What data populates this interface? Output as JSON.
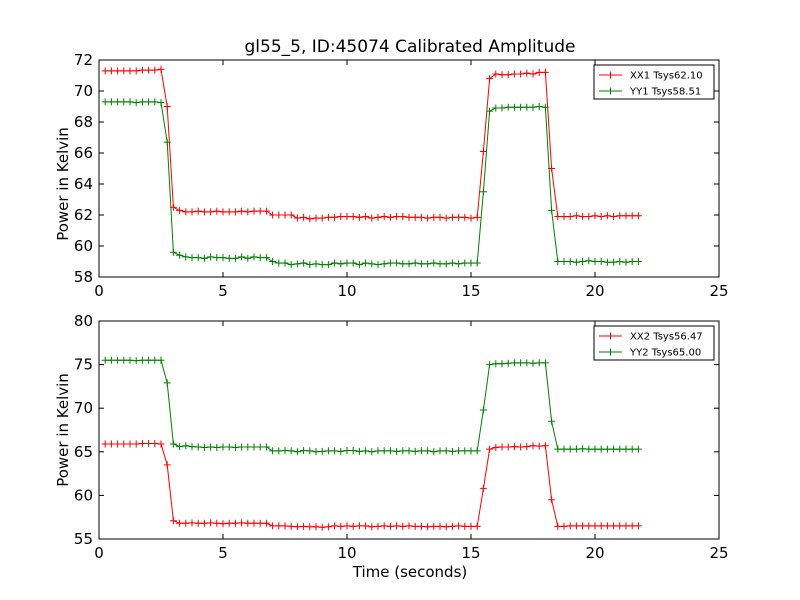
{
  "chart_data": [
    {
      "type": "line",
      "title": "gl55_5, ID:45074 Calibrated Amplitude",
      "xlabel": "",
      "ylabel": "Power in Kelvin",
      "xlim": [
        0,
        25
      ],
      "ylim": [
        58,
        72
      ],
      "xticks": [
        0,
        5,
        10,
        15,
        20,
        25
      ],
      "yticks": [
        58,
        60,
        62,
        64,
        66,
        68,
        70,
        72
      ],
      "grid": false,
      "legend_position": "top-right",
      "series": [
        {
          "name": "XX1 Tsys62.10",
          "color": "#ff0000",
          "x": [
            0.25,
            0.5,
            0.75,
            1.0,
            1.25,
            1.5,
            1.75,
            2.0,
            2.25,
            2.5,
            2.75,
            3.0,
            3.25,
            3.5,
            3.75,
            4.0,
            4.25,
            4.5,
            4.75,
            5.0,
            5.25,
            5.5,
            5.75,
            6.0,
            6.25,
            6.5,
            6.75,
            7.0,
            7.25,
            7.5,
            7.75,
            8.0,
            8.25,
            8.5,
            8.75,
            9.0,
            9.25,
            9.5,
            9.75,
            10.0,
            10.25,
            10.5,
            10.75,
            11.0,
            11.25,
            11.5,
            11.75,
            12.0,
            12.25,
            12.5,
            12.75,
            13.0,
            13.25,
            13.5,
            13.75,
            14.0,
            14.25,
            14.5,
            14.75,
            15.0,
            15.25,
            15.5,
            15.75,
            16.0,
            16.25,
            16.5,
            16.75,
            17.0,
            17.25,
            17.5,
            17.75,
            18.0,
            18.25,
            18.5,
            18.75,
            19.0,
            19.25,
            19.5,
            19.75,
            20.0,
            20.25,
            20.5,
            20.75,
            21.0,
            21.25,
            21.5,
            21.75
          ],
          "y": [
            71.3,
            71.3,
            71.3,
            71.3,
            71.3,
            71.3,
            71.35,
            71.35,
            71.35,
            71.4,
            69.0,
            62.5,
            62.3,
            62.2,
            62.2,
            62.25,
            62.2,
            62.2,
            62.25,
            62.2,
            62.2,
            62.2,
            62.25,
            62.2,
            62.25,
            62.25,
            62.25,
            62.0,
            62.0,
            62.0,
            62.0,
            61.8,
            61.85,
            61.75,
            61.8,
            61.8,
            61.85,
            61.85,
            61.9,
            61.9,
            61.9,
            61.85,
            61.9,
            61.8,
            61.85,
            61.9,
            61.85,
            61.9,
            61.9,
            61.85,
            61.85,
            61.85,
            61.8,
            61.85,
            61.85,
            61.8,
            61.85,
            61.85,
            61.85,
            61.8,
            61.85,
            66.1,
            70.8,
            71.1,
            71.05,
            71.05,
            71.1,
            71.1,
            71.15,
            71.1,
            71.2,
            71.2,
            65.0,
            61.9,
            61.9,
            61.9,
            61.95,
            61.9,
            61.9,
            61.95,
            61.9,
            61.95,
            61.9,
            61.95,
            61.95,
            61.95,
            61.95
          ]
        },
        {
          "name": "YY1 Tsys58.51",
          "color": "#008000",
          "x": [
            0.25,
            0.5,
            0.75,
            1.0,
            1.25,
            1.5,
            1.75,
            2.0,
            2.25,
            2.5,
            2.75,
            3.0,
            3.25,
            3.5,
            3.75,
            4.0,
            4.25,
            4.5,
            4.75,
            5.0,
            5.25,
            5.5,
            5.75,
            6.0,
            6.25,
            6.5,
            6.75,
            7.0,
            7.25,
            7.5,
            7.75,
            8.0,
            8.25,
            8.5,
            8.75,
            9.0,
            9.25,
            9.5,
            9.75,
            10.0,
            10.25,
            10.5,
            10.75,
            11.0,
            11.25,
            11.5,
            11.75,
            12.0,
            12.25,
            12.5,
            12.75,
            13.0,
            13.25,
            13.5,
            13.75,
            14.0,
            14.25,
            14.5,
            14.75,
            15.0,
            15.25,
            15.5,
            15.75,
            16.0,
            16.25,
            16.5,
            16.75,
            17.0,
            17.25,
            17.5,
            17.75,
            18.0,
            18.25,
            18.5,
            18.75,
            19.0,
            19.25,
            19.5,
            19.75,
            20.0,
            20.25,
            20.5,
            20.75,
            21.0,
            21.25,
            21.5,
            21.75
          ],
          "y": [
            69.3,
            69.3,
            69.3,
            69.3,
            69.3,
            69.25,
            69.3,
            69.3,
            69.3,
            69.25,
            66.7,
            59.6,
            59.4,
            59.3,
            59.25,
            59.25,
            59.2,
            59.3,
            59.25,
            59.25,
            59.2,
            59.2,
            59.3,
            59.2,
            59.3,
            59.25,
            59.25,
            59.0,
            58.9,
            58.9,
            58.8,
            58.85,
            58.9,
            58.8,
            58.85,
            58.8,
            58.8,
            58.9,
            58.85,
            58.9,
            58.9,
            58.8,
            58.9,
            58.85,
            58.8,
            58.85,
            58.9,
            58.9,
            58.85,
            58.85,
            58.9,
            58.85,
            58.85,
            58.9,
            58.85,
            58.85,
            58.9,
            58.85,
            58.9,
            58.9,
            58.9,
            63.5,
            68.7,
            68.9,
            68.9,
            68.95,
            68.95,
            68.95,
            68.95,
            68.95,
            69.0,
            68.95,
            62.3,
            59.0,
            59.0,
            59.0,
            58.95,
            59.0,
            59.05,
            59.0,
            59.0,
            58.95,
            58.95,
            59.0,
            58.95,
            59.0,
            59.0
          ]
        }
      ]
    },
    {
      "type": "line",
      "title": "",
      "xlabel": "Time (seconds)",
      "ylabel": "Power in Kelvin",
      "xlim": [
        0,
        25
      ],
      "ylim": [
        55,
        80
      ],
      "xticks": [
        0,
        5,
        10,
        15,
        20,
        25
      ],
      "yticks": [
        55,
        60,
        65,
        70,
        75,
        80
      ],
      "grid": false,
      "legend_position": "top-right",
      "series": [
        {
          "name": "XX2 Tsys56.47",
          "color": "#ff0000",
          "x": [
            0.25,
            0.5,
            0.75,
            1.0,
            1.25,
            1.5,
            1.75,
            2.0,
            2.25,
            2.5,
            2.75,
            3.0,
            3.25,
            3.5,
            3.75,
            4.0,
            4.25,
            4.5,
            4.75,
            5.0,
            5.25,
            5.5,
            5.75,
            6.0,
            6.25,
            6.5,
            6.75,
            7.0,
            7.25,
            7.5,
            7.75,
            8.0,
            8.25,
            8.5,
            8.75,
            9.0,
            9.25,
            9.5,
            9.75,
            10.0,
            10.25,
            10.5,
            10.75,
            11.0,
            11.25,
            11.5,
            11.75,
            12.0,
            12.25,
            12.5,
            12.75,
            13.0,
            13.25,
            13.5,
            13.75,
            14.0,
            14.25,
            14.5,
            14.75,
            15.0,
            15.25,
            15.5,
            15.75,
            16.0,
            16.25,
            16.5,
            16.75,
            17.0,
            17.25,
            17.5,
            17.75,
            18.0,
            18.25,
            18.5,
            18.75,
            19.0,
            19.25,
            19.5,
            19.75,
            20.0,
            20.25,
            20.5,
            20.75,
            21.0,
            21.25,
            21.5,
            21.75
          ],
          "y": [
            65.9,
            65.9,
            65.9,
            65.9,
            65.9,
            65.9,
            65.95,
            65.95,
            65.95,
            65.9,
            63.5,
            57.1,
            56.8,
            56.8,
            56.85,
            56.8,
            56.8,
            56.85,
            56.8,
            56.75,
            56.8,
            56.8,
            56.85,
            56.8,
            56.8,
            56.8,
            56.8,
            56.5,
            56.5,
            56.5,
            56.45,
            56.4,
            56.45,
            56.4,
            56.4,
            56.35,
            56.4,
            56.5,
            56.45,
            56.5,
            56.45,
            56.5,
            56.5,
            56.4,
            56.45,
            56.5,
            56.45,
            56.5,
            56.45,
            56.5,
            56.45,
            56.45,
            56.4,
            56.45,
            56.45,
            56.4,
            56.45,
            56.5,
            56.45,
            56.45,
            56.45,
            60.8,
            65.3,
            65.5,
            65.55,
            65.55,
            65.6,
            65.55,
            65.6,
            65.7,
            65.65,
            65.7,
            59.5,
            56.45,
            56.45,
            56.5,
            56.5,
            56.5,
            56.5,
            56.5,
            56.5,
            56.5,
            56.5,
            56.5,
            56.5,
            56.5,
            56.5
          ]
        },
        {
          "name": "YY2 Tsys65.00",
          "color": "#008000",
          "x": [
            0.25,
            0.5,
            0.75,
            1.0,
            1.25,
            1.5,
            1.75,
            2.0,
            2.25,
            2.5,
            2.75,
            3.0,
            3.25,
            3.5,
            3.75,
            4.0,
            4.25,
            4.5,
            4.75,
            5.0,
            5.25,
            5.5,
            5.75,
            6.0,
            6.25,
            6.5,
            6.75,
            7.0,
            7.25,
            7.5,
            7.75,
            8.0,
            8.25,
            8.5,
            8.75,
            9.0,
            9.25,
            9.5,
            9.75,
            10.0,
            10.25,
            10.5,
            10.75,
            11.0,
            11.25,
            11.5,
            11.75,
            12.0,
            12.25,
            12.5,
            12.75,
            13.0,
            13.25,
            13.5,
            13.75,
            14.0,
            14.25,
            14.5,
            14.75,
            15.0,
            15.25,
            15.5,
            15.75,
            16.0,
            16.25,
            16.5,
            16.75,
            17.0,
            17.25,
            17.5,
            17.75,
            18.0,
            18.25,
            18.5,
            18.75,
            19.0,
            19.25,
            19.5,
            19.75,
            20.0,
            20.25,
            20.5,
            20.75,
            21.0,
            21.25,
            21.5,
            21.75
          ],
          "y": [
            75.5,
            75.5,
            75.5,
            75.5,
            75.5,
            75.45,
            75.5,
            75.5,
            75.5,
            75.5,
            72.9,
            65.9,
            65.6,
            65.7,
            65.6,
            65.55,
            65.5,
            65.55,
            65.5,
            65.55,
            65.55,
            65.5,
            65.55,
            65.55,
            65.55,
            65.55,
            65.55,
            65.1,
            65.1,
            65.15,
            65.1,
            65.0,
            65.15,
            65.1,
            65.0,
            65.05,
            65.1,
            65.1,
            65.05,
            65.15,
            65.15,
            65.05,
            65.1,
            65.0,
            65.1,
            65.1,
            65.1,
            65.05,
            65.1,
            65.1,
            65.05,
            65.1,
            65.1,
            65.0,
            65.1,
            65.1,
            65.05,
            65.1,
            65.1,
            65.1,
            65.1,
            69.8,
            75.0,
            75.1,
            75.1,
            75.15,
            75.2,
            75.2,
            75.2,
            75.15,
            75.2,
            75.2,
            68.5,
            65.3,
            65.3,
            65.3,
            65.3,
            65.35,
            65.3,
            65.3,
            65.3,
            65.3,
            65.3,
            65.3,
            65.3,
            65.3,
            65.3
          ]
        }
      ]
    }
  ]
}
